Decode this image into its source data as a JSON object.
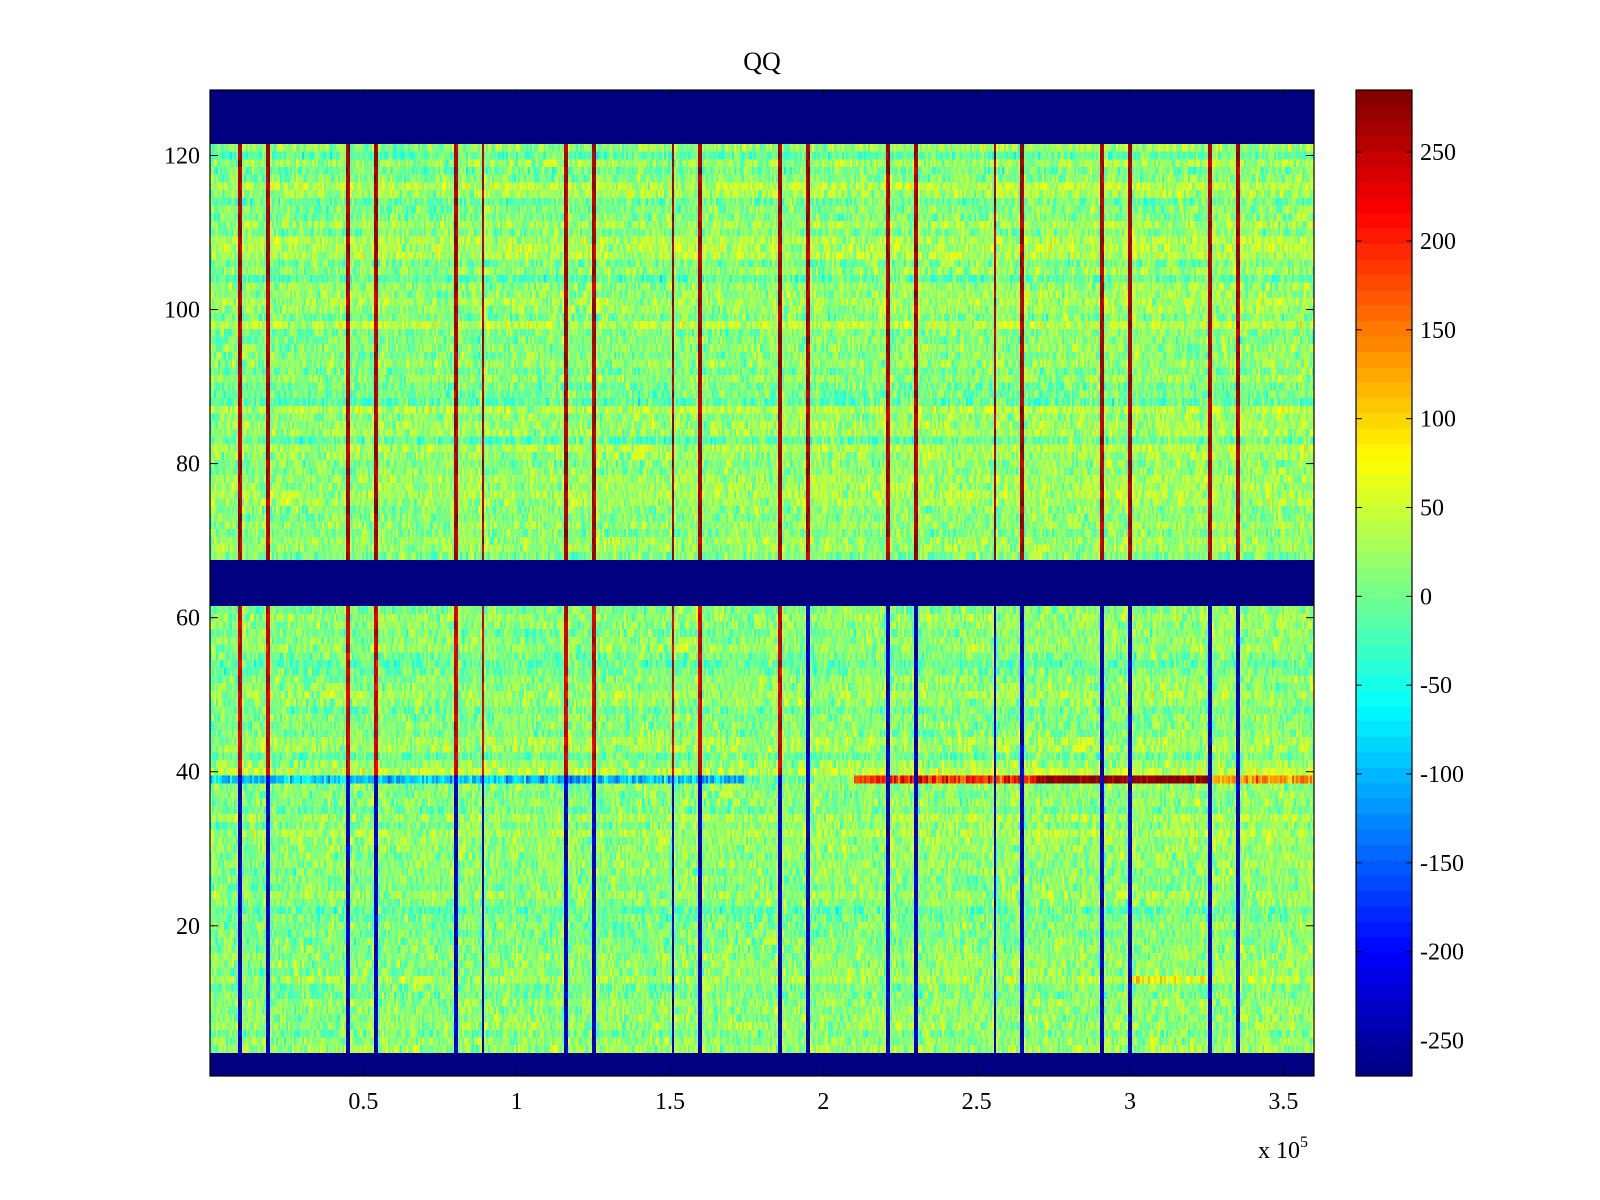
{
  "chart_data": [
    {
      "type": "heatmap",
      "title": "QQ",
      "xlabel": "",
      "ylabel": "",
      "x_exponent_label": "x 10",
      "x_exponent_power": "5",
      "xlim": [
        0,
        3.6
      ],
      "ylim": [
        0.5,
        128.5
      ],
      "x_ticks": [
        0.5,
        1,
        1.5,
        2,
        2.5,
        3,
        3.5
      ],
      "x_tick_labels": [
        "0.5",
        "1",
        "1.5",
        "2",
        "2.5",
        "3",
        "3.5"
      ],
      "y_ticks": [
        20,
        40,
        60,
        80,
        100,
        120
      ],
      "y_tick_labels": [
        "20",
        "40",
        "60",
        "80",
        "100",
        "120"
      ],
      "n_rows": 128,
      "colormap": "jet",
      "clim": [
        -270,
        285
      ],
      "background_noise": {
        "mean": 10,
        "std": 25
      },
      "empty_row_bands": [
        {
          "rows": [
            1,
            3
          ],
          "value": -270
        },
        {
          "rows": [
            62,
            67
          ],
          "value": -270
        },
        {
          "rows": [
            122,
            128
          ],
          "value": -270
        }
      ],
      "spike_columns_x": [
        0.1,
        0.19,
        0.45,
        0.54,
        0.8,
        0.89,
        1.16,
        1.25,
        1.51,
        1.6,
        1.86,
        1.95,
        2.21,
        2.3,
        2.56,
        2.65,
        2.91,
        3.0,
        3.26,
        3.35
      ],
      "spike_profile": [
        {
          "rows": [
            68,
            121
          ],
          "value": 260
        },
        {
          "rows": [
            4,
            61
          ],
          "value": -230
        },
        {
          "rows": [
            40,
            61
          ],
          "value": 240,
          "x_range": [
            0,
            1.9
          ]
        }
      ],
      "highlight_rows": [
        {
          "row": 39,
          "x_range": [
            0,
            1.75
          ],
          "value": -90
        },
        {
          "row": 39,
          "x_range": [
            2.1,
            2.7
          ],
          "value": 200
        },
        {
          "row": 39,
          "x_range": [
            2.7,
            3.27
          ],
          "value": 280
        },
        {
          "row": 39,
          "x_range": [
            3.27,
            3.6
          ],
          "value": 130
        },
        {
          "row": 13,
          "x_range": [
            3.0,
            3.27
          ],
          "value": 80
        }
      ]
    },
    {
      "type": "colorbar",
      "colormap": "jet",
      "range": [
        -270,
        285
      ],
      "ticks": [
        250,
        200,
        150,
        100,
        50,
        0,
        -50,
        -100,
        -150,
        -200,
        -250
      ],
      "tick_labels": [
        "250",
        "200",
        "150",
        "100",
        "50",
        "0",
        "-50",
        "-100",
        "-150",
        "-200",
        "-250"
      ]
    }
  ]
}
